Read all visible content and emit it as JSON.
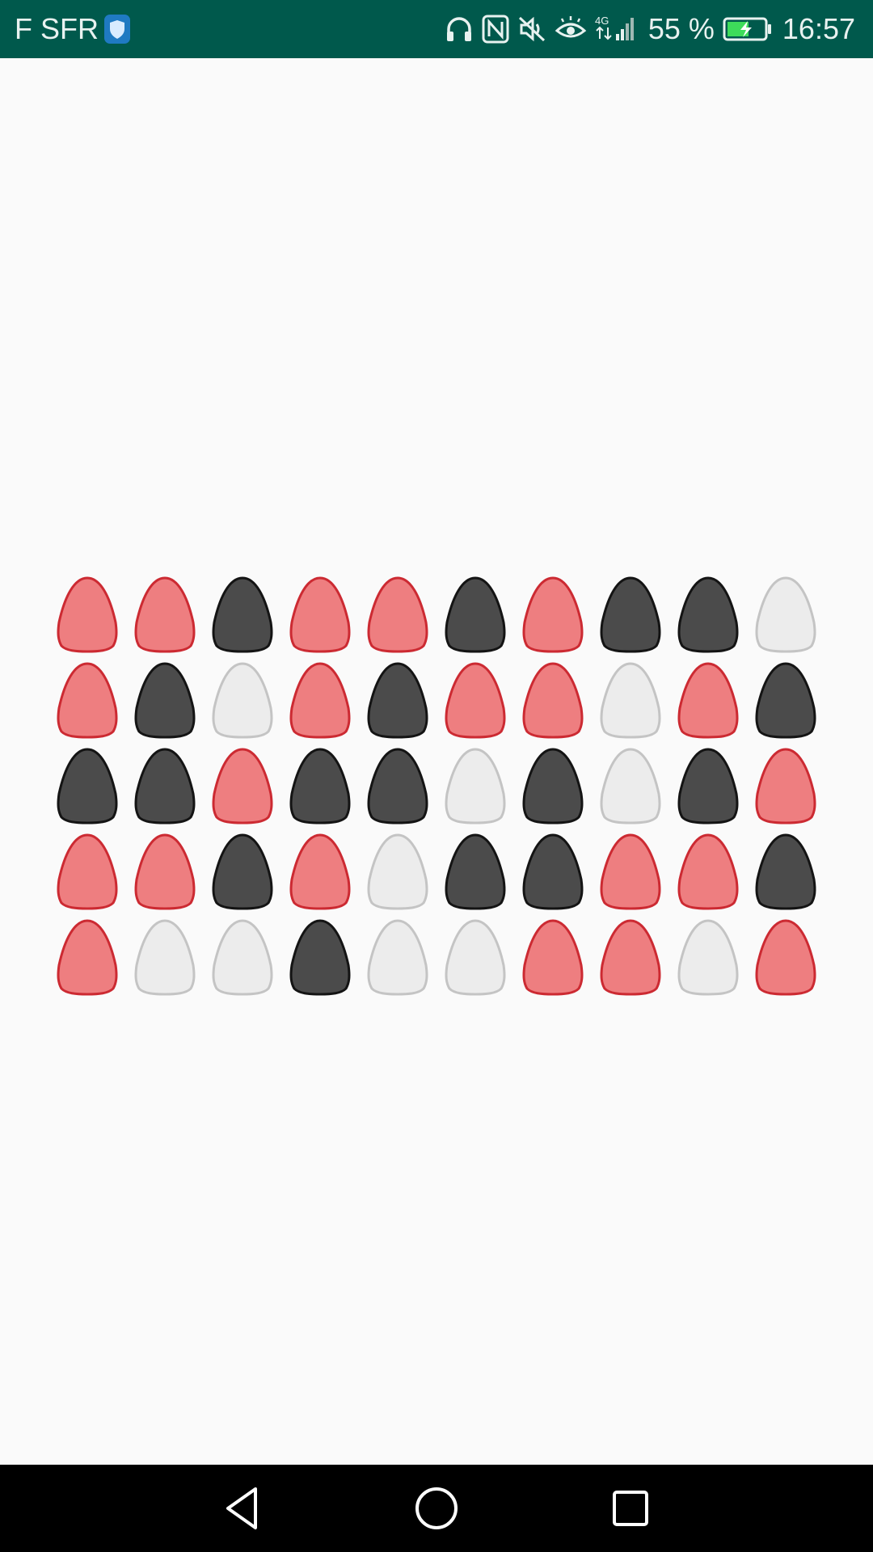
{
  "status_bar": {
    "carrier": "F SFR",
    "network": "4G",
    "battery_percent": "55 %",
    "time": "16:57",
    "icons": [
      "vpn-shield-icon",
      "headphones-icon",
      "nfc-icon",
      "mute-icon",
      "eye-comfort-icon",
      "signal-icon",
      "battery-charging-icon"
    ]
  },
  "colors": {
    "red": "#ee7e80",
    "red_border": "#cc2a32",
    "black": "#4b4b4b",
    "black_border": "#141414",
    "white": "#ececec",
    "white_border": "#c4c4c4",
    "background": "#fafafa",
    "status_bar": "#00594c"
  },
  "board": {
    "rows": [
      [
        "red",
        "red",
        "black",
        "red",
        "red",
        "black",
        "red",
        "black",
        "black",
        "white"
      ],
      [
        "red",
        "black",
        "white",
        "red",
        "black",
        "red",
        "red",
        "white",
        "red",
        "black"
      ],
      [
        "black",
        "black",
        "red",
        "black",
        "black",
        "white",
        "black",
        "white",
        "black",
        "red"
      ],
      [
        "red",
        "red",
        "black",
        "red",
        "white",
        "black",
        "black",
        "red",
        "red",
        "black"
      ],
      [
        "red",
        "white",
        "white",
        "black",
        "white",
        "white",
        "red",
        "red",
        "white",
        "red"
      ]
    ]
  },
  "nav_bar": {
    "buttons": [
      "back-icon",
      "home-icon",
      "recents-icon"
    ]
  }
}
